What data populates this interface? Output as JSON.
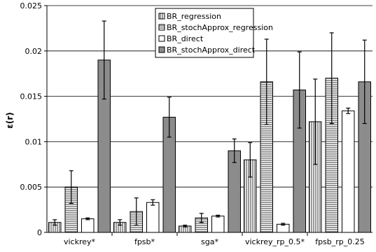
{
  "chart_data": {
    "type": "bar",
    "title": "",
    "xlabel": "",
    "ylabel": "ε(r)",
    "ylim": [
      0,
      0.025
    ],
    "y_ticks": [
      "0",
      "0.005",
      "0.01",
      "0.015",
      "0.02",
      "0.025"
    ],
    "y_tick_values": [
      0,
      0.005,
      0.01,
      0.015,
      0.02,
      0.025
    ],
    "categories": [
      "vickrey*",
      "fpsb*",
      "sga*",
      "vickrey_rp_0.5*",
      "fpsb_rp_0.25"
    ],
    "series": [
      {
        "name": "BR_regression",
        "pattern": "vertical-lines",
        "values": [
          0.0011,
          0.0011,
          0.0007,
          0.008,
          0.0122
        ],
        "errors": [
          0.0003,
          0.0003,
          0.0001,
          0.0019,
          0.0047
        ]
      },
      {
        "name": "BR_stochApprox_regression",
        "pattern": "horizontal-lines",
        "values": [
          0.005,
          0.0023,
          0.0016,
          0.0166,
          0.017
        ],
        "errors": [
          0.0018,
          0.0015,
          0.0005,
          0.0047,
          0.005
        ]
      },
      {
        "name": "BR_direct",
        "pattern": "white",
        "values": [
          0.0015,
          0.0033,
          0.0018,
          0.0009,
          0.0134
        ],
        "errors": [
          0.0001,
          0.0003,
          0.0001,
          0.0001,
          0.0003
        ]
      },
      {
        "name": "BR_stochApprox_direct",
        "pattern": "gray",
        "values": [
          0.019,
          0.0127,
          0.009,
          0.0157,
          0.0166
        ],
        "errors": [
          0.0043,
          0.0022,
          0.0013,
          0.0042,
          0.0046
        ]
      }
    ],
    "legend_position": "top-center",
    "colors": {
      "gray_fill": "#8c8c8c",
      "stroke": "#000000"
    }
  }
}
